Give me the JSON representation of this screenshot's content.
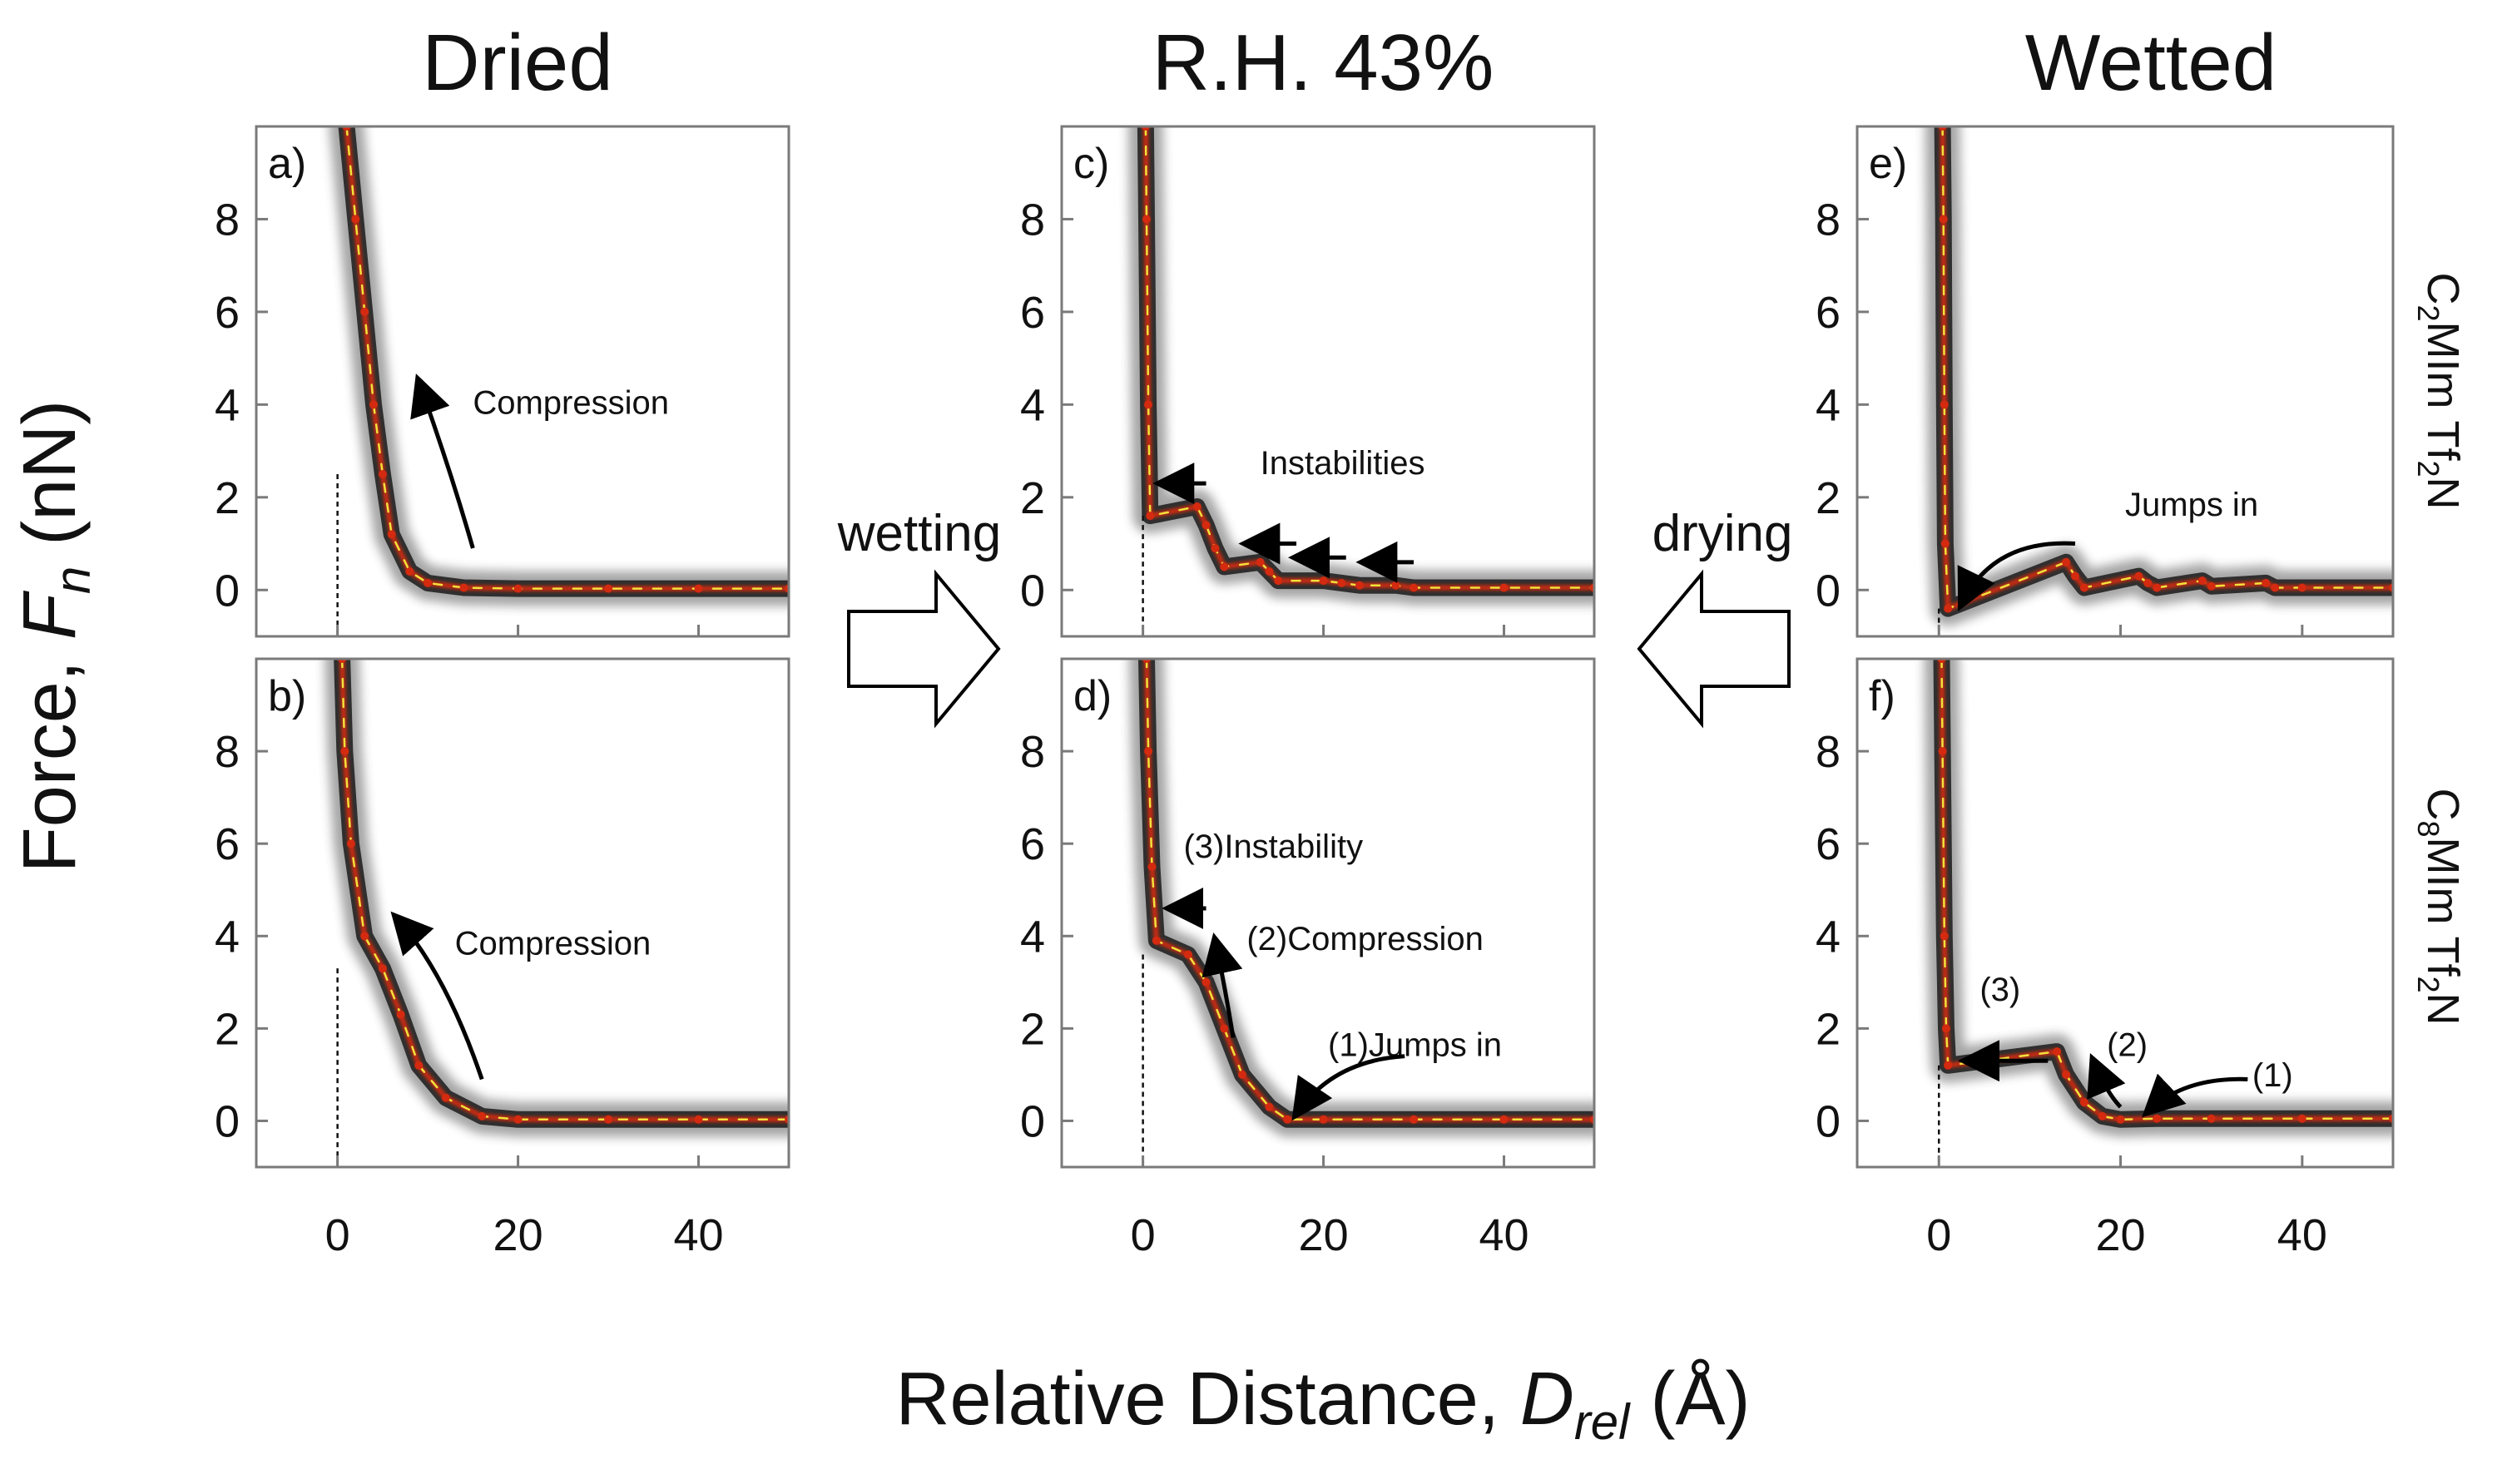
{
  "chart_data": {
    "type": "scatter",
    "title": "",
    "xlabel": "Relative Distance, D_rel (Å)",
    "xlabel_parts": {
      "prefix": "Relative Distance, ",
      "symbol": "D",
      "subscript": "rel",
      "unit": " (Å)"
    },
    "ylabel": "Force, F_n (nN)",
    "ylabel_parts": {
      "prefix": "Force, ",
      "symbol": "F",
      "subscript": "n",
      "unit": " (nN)"
    },
    "xlim": [
      -9,
      50
    ],
    "ylim": [
      -1,
      10
    ],
    "xticks": [
      0,
      20,
      40
    ],
    "yticks": [
      0,
      2,
      4,
      6,
      8
    ],
    "columns": [
      "Dried",
      "R.H. 43%",
      "Wetted"
    ],
    "rows": [
      {
        "compound": "C2MIm Tf2N",
        "parts": [
          "C",
          "2",
          "MIm Tf",
          "2",
          "N"
        ]
      },
      {
        "compound": "C8MIm Tf2N",
        "parts": [
          "C",
          "8",
          "MIm Tf",
          "2",
          "N"
        ]
      }
    ],
    "transitions": [
      {
        "label": "wetting",
        "direction": "right",
        "from": "Dried",
        "to": "R.H. 43%"
      },
      {
        "label": "drying",
        "direction": "left",
        "from": "Wetted",
        "to": "R.H. 43%"
      }
    ],
    "colors": {
      "cloud": "#3a3a3a",
      "core_red": "#d42a10",
      "core_yellow": "#f2e23a"
    },
    "panels": [
      {
        "id": "a",
        "label": "a)",
        "column": "Dried",
        "compound": "C2MIm Tf2N",
        "series": [
          {
            "name": "compression",
            "x": [
              1,
              2,
              3,
              4,
              5,
              6,
              8,
              10,
              14,
              20,
              30,
              40,
              50
            ],
            "y": [
              10,
              8,
              6,
              4,
              2.5,
              1.2,
              0.4,
              0.15,
              0.05,
              0.03,
              0.03,
              0.03,
              0.03
            ]
          }
        ],
        "annotations": [
          {
            "text": "Compression",
            "x": 15,
            "y": 3.8
          }
        ]
      },
      {
        "id": "b",
        "label": "b)",
        "column": "Dried",
        "compound": "C8MIm Tf2N",
        "series": [
          {
            "name": "compression",
            "x": [
              0.5,
              0.8,
              1.5,
              3,
              5,
              7,
              9,
              12,
              16,
              20,
              30,
              40,
              50
            ],
            "y": [
              10,
              8,
              6,
              4,
              3.3,
              2.3,
              1.2,
              0.5,
              0.1,
              0.03,
              0.03,
              0.03,
              0.03
            ]
          }
        ],
        "annotations": [
          {
            "text": "Compression",
            "x": 13,
            "y": 3.6
          }
        ]
      },
      {
        "id": "c",
        "label": "c)",
        "column": "R.H. 43%",
        "compound": "C2MIm Tf2N",
        "series": [
          {
            "name": "compression",
            "x": [
              0.3,
              0.4,
              0.6,
              0.8,
              6,
              7,
              8,
              9,
              13,
              14,
              15,
              20,
              22,
              24,
              28,
              30,
              40,
              50
            ],
            "y": [
              10,
              8,
              4,
              1.6,
              1.8,
              1.4,
              0.9,
              0.5,
              0.6,
              0.4,
              0.2,
              0.2,
              0.15,
              0.1,
              0.1,
              0.05,
              0.05,
              0.05
            ]
          }
        ],
        "annotations": [
          {
            "text": "Instabilities",
            "x": 13,
            "y": 2.5
          }
        ]
      },
      {
        "id": "d",
        "label": "d)",
        "column": "R.H. 43%",
        "compound": "C8MIm Tf2N",
        "series": [
          {
            "name": "compression",
            "x": [
              0.4,
              0.6,
              1,
              1.5,
              5,
              7,
              9,
              11,
              14,
              16,
              20,
              30,
              40,
              50
            ],
            "y": [
              10,
              8,
              5.5,
              3.9,
              3.6,
              3.0,
              2.0,
              1.0,
              0.3,
              0.03,
              0.03,
              0.03,
              0.03,
              0.03
            ]
          }
        ],
        "annotations": [
          {
            "text": "(3)Instability",
            "x": 4.5,
            "y": 5.7
          },
          {
            "text": "(2)Compression",
            "x": 11.5,
            "y": 3.7
          },
          {
            "text": "(1)Jumps in",
            "x": 20.5,
            "y": 1.4
          }
        ]
      },
      {
        "id": "e",
        "label": "e)",
        "column": "Wetted",
        "compound": "C2MIm Tf2N",
        "series": [
          {
            "name": "compression",
            "x": [
              0.4,
              0.5,
              0.6,
              0.7,
              1,
              14,
              15,
              16,
              22,
              23,
              24,
              29,
              30,
              36,
              37,
              40,
              50
            ],
            "y": [
              10,
              8,
              4,
              1,
              -0.4,
              0.6,
              0.3,
              0.05,
              0.3,
              0.15,
              0.05,
              0.2,
              0.08,
              0.15,
              0.05,
              0.05,
              0.05
            ]
          }
        ],
        "annotations": [
          {
            "text": "Jumps in",
            "x": 20.5,
            "y": 1.6
          }
        ]
      },
      {
        "id": "f",
        "label": "f)",
        "column": "Wetted",
        "compound": "C8MIm Tf2N",
        "series": [
          {
            "name": "compression",
            "x": [
              0.3,
              0.4,
              0.6,
              0.8,
              1,
              13,
              14,
              16,
              18,
              20,
              24,
              30,
              40,
              50
            ],
            "y": [
              10,
              8,
              4,
              2,
              1.2,
              1.5,
              1.0,
              0.4,
              0.1,
              0.03,
              0.05,
              0.05,
              0.05,
              0.05
            ]
          }
        ],
        "annotations": [
          {
            "text": "(3)",
            "x": 4.5,
            "y": 2.6
          },
          {
            "text": "(2)",
            "x": 18.5,
            "y": 1.4
          },
          {
            "text": "(1)",
            "x": 34.5,
            "y": 0.75
          }
        ]
      }
    ]
  }
}
